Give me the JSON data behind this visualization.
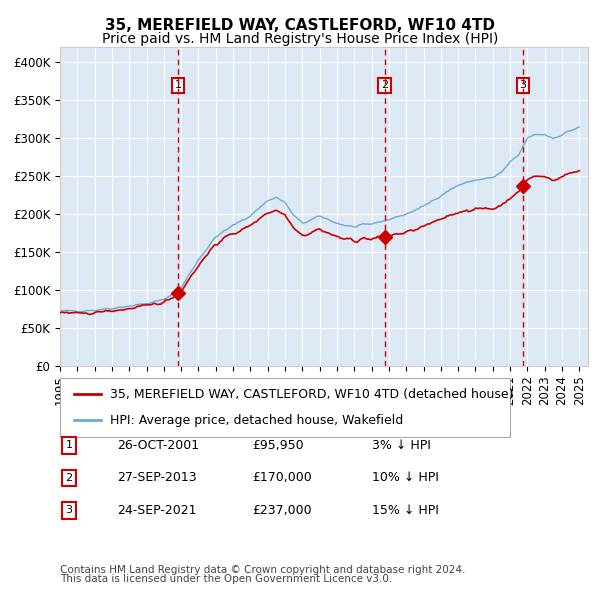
{
  "title": "35, MEREFIELD WAY, CASTLEFORD, WF10 4TD",
  "subtitle": "Price paid vs. HM Land Registry's House Price Index (HPI)",
  "ylabel": "",
  "ylim": [
    0,
    420000
  ],
  "yticks": [
    0,
    50000,
    100000,
    150000,
    200000,
    250000,
    300000,
    350000,
    400000
  ],
  "xlim_start": 1995.0,
  "xlim_end": 2025.5,
  "background_color": "#dce9f5",
  "plot_bg_color": "#dce9f5",
  "grid_color": "#ffffff",
  "hpi_color": "#6fa8d4",
  "price_color": "#cc0000",
  "sale_marker_color": "#cc0000",
  "dashed_line_color": "#cc0000",
  "label_box_color": "#cc0000",
  "transactions": [
    {
      "label": "1",
      "date": "26-OCT-2001",
      "year": 2001.82,
      "price": 95950,
      "pct": "3%",
      "dir": "↓"
    },
    {
      "label": "2",
      "date": "27-SEP-2013",
      "year": 2013.75,
      "price": 170000,
      "pct": "10%",
      "dir": "↓"
    },
    {
      "label": "3",
      "date": "24-SEP-2021",
      "year": 2021.75,
      "price": 237000,
      "pct": "15%",
      "dir": "↓"
    }
  ],
  "legend_entries": [
    "35, MEREFIELD WAY, CASTLEFORD, WF10 4TD (detached house)",
    "HPI: Average price, detached house, Wakefield"
  ],
  "footer_lines": [
    "Contains HM Land Registry data © Crown copyright and database right 2024.",
    "This data is licensed under the Open Government Licence v3.0."
  ],
  "title_fontsize": 11,
  "subtitle_fontsize": 10,
  "tick_fontsize": 8.5,
  "legend_fontsize": 9,
  "footer_fontsize": 7.5
}
